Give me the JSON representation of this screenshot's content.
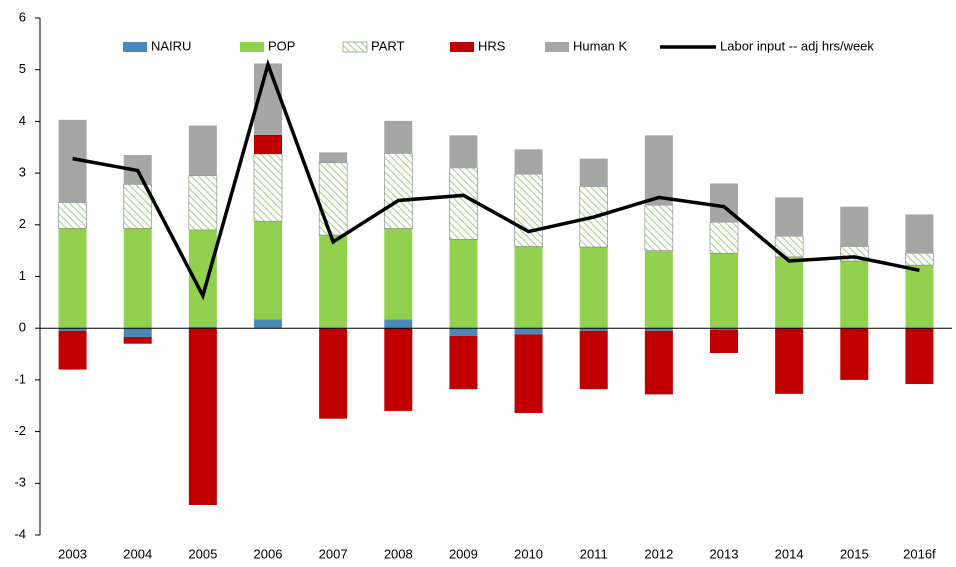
{
  "chart_data": {
    "type": "stacked_bar_line",
    "categories": [
      "2003",
      "2004",
      "2005",
      "2006",
      "2007",
      "2008",
      "2009",
      "2010",
      "2011",
      "2012",
      "2013",
      "2014",
      "2015",
      "2016f"
    ],
    "series": [
      {
        "name": "NAIRU",
        "color": "#4a89b8",
        "values": [
          -0.05,
          -0.17,
          0.03,
          0.17,
          0,
          0.17,
          -0.15,
          -0.12,
          -0.05,
          -0.05,
          -0.03,
          0,
          0,
          0
        ]
      },
      {
        "name": "POP",
        "color": "#92d050",
        "values": [
          1.93,
          1.93,
          1.87,
          1.9,
          1.8,
          1.76,
          1.72,
          1.58,
          1.57,
          1.5,
          1.45,
          1.38,
          1.3,
          1.22
        ]
      },
      {
        "name": "PART",
        "color": "#a9d18e",
        "hatch": true,
        "values": [
          0.5,
          0.85,
          1.05,
          1.3,
          1.4,
          1.45,
          1.38,
          1.4,
          1.17,
          0.88,
          0.6,
          0.4,
          0.28,
          0.23
        ]
      },
      {
        "name": "HRS",
        "color": "#c00000",
        "values": [
          -0.75,
          -0.13,
          -3.42,
          0.37,
          -1.75,
          -1.6,
          -1.03,
          -1.52,
          -1.13,
          -1.23,
          -0.45,
          -1.27,
          -1.0,
          -1.08
        ]
      },
      {
        "name": "Human K",
        "color": "#a6a6a6",
        "values": [
          1.6,
          0.57,
          0.97,
          1.38,
          0.2,
          0.63,
          0.63,
          0.48,
          0.54,
          1.35,
          0.75,
          0.75,
          0.77,
          0.75
        ]
      }
    ],
    "line": {
      "name": "Labor input -- adj hrs/week",
      "color": "#000000",
      "values": [
        3.28,
        3.05,
        0.63,
        5.1,
        1.67,
        2.47,
        2.57,
        1.87,
        2.15,
        2.53,
        2.35,
        1.3,
        1.38,
        1.12
      ]
    },
    "ylim": [
      -4,
      6
    ],
    "yticks": [
      -4,
      -3,
      -2,
      -1,
      0,
      1,
      2,
      3,
      4,
      5,
      6
    ],
    "grid": false,
    "legend": "top"
  }
}
